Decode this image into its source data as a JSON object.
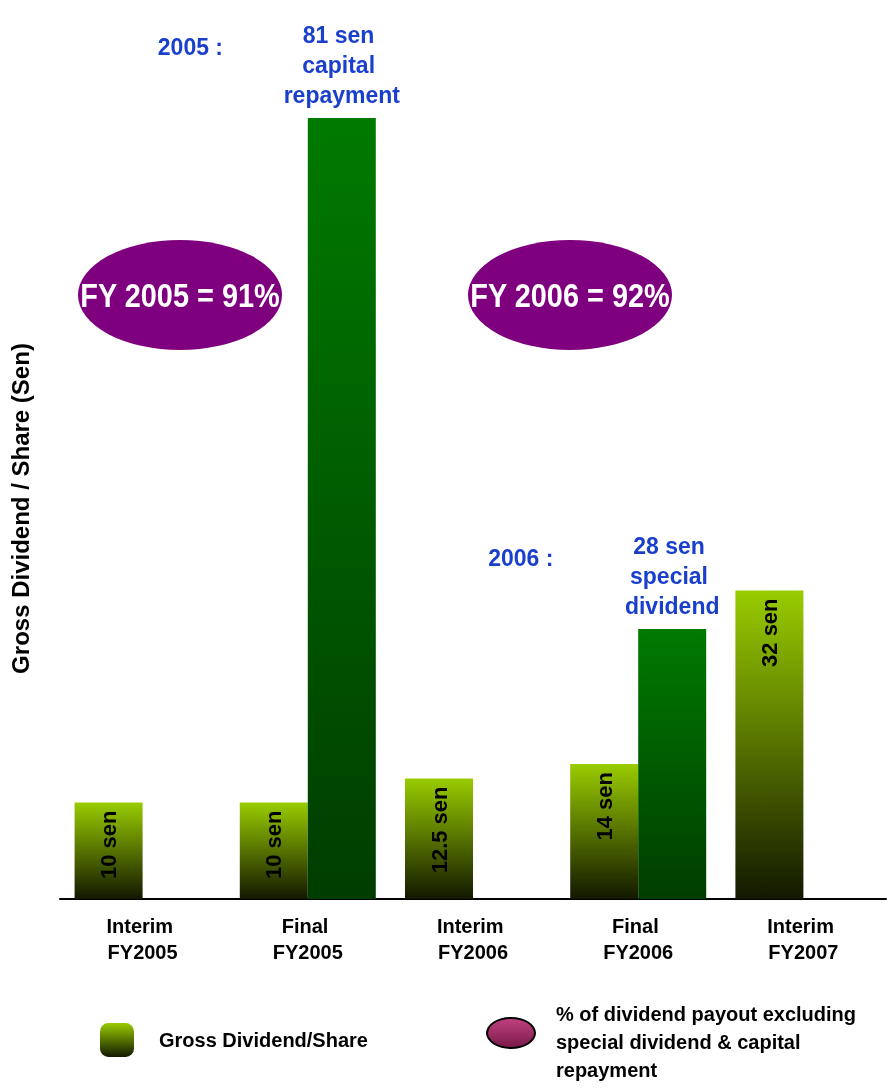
{
  "chart_data": {
    "type": "bar",
    "ylabel": "Gross Dividend / Share (Sen)",
    "categories": [
      "Interim FY2005",
      "Final FY2005",
      "Interim FY2006",
      "Final FY2006",
      "Interim FY2007"
    ],
    "series": [
      {
        "name": "Gross Dividend/Share",
        "color": "#99cc00",
        "values": [
          10,
          10,
          12.5,
          14,
          32
        ],
        "value_labels": [
          "10 sen",
          "10 sen",
          "12.5 sen",
          "14 sen",
          "32 sen"
        ]
      },
      {
        "color": "#007a00",
        "values": [
          null,
          81,
          null,
          28,
          null
        ],
        "value_labels": [
          null,
          "81 sen capital repayment",
          null,
          "28 sen special dividend",
          null
        ]
      }
    ],
    "annotations": [
      "FY 2005 = 91%",
      "FY 2006 = 92%",
      "2005 :",
      "2006 :",
      "% of dividend payout excluding special dividend & capital repayment"
    ],
    "legend": "bottom",
    "grid": false
  }
}
